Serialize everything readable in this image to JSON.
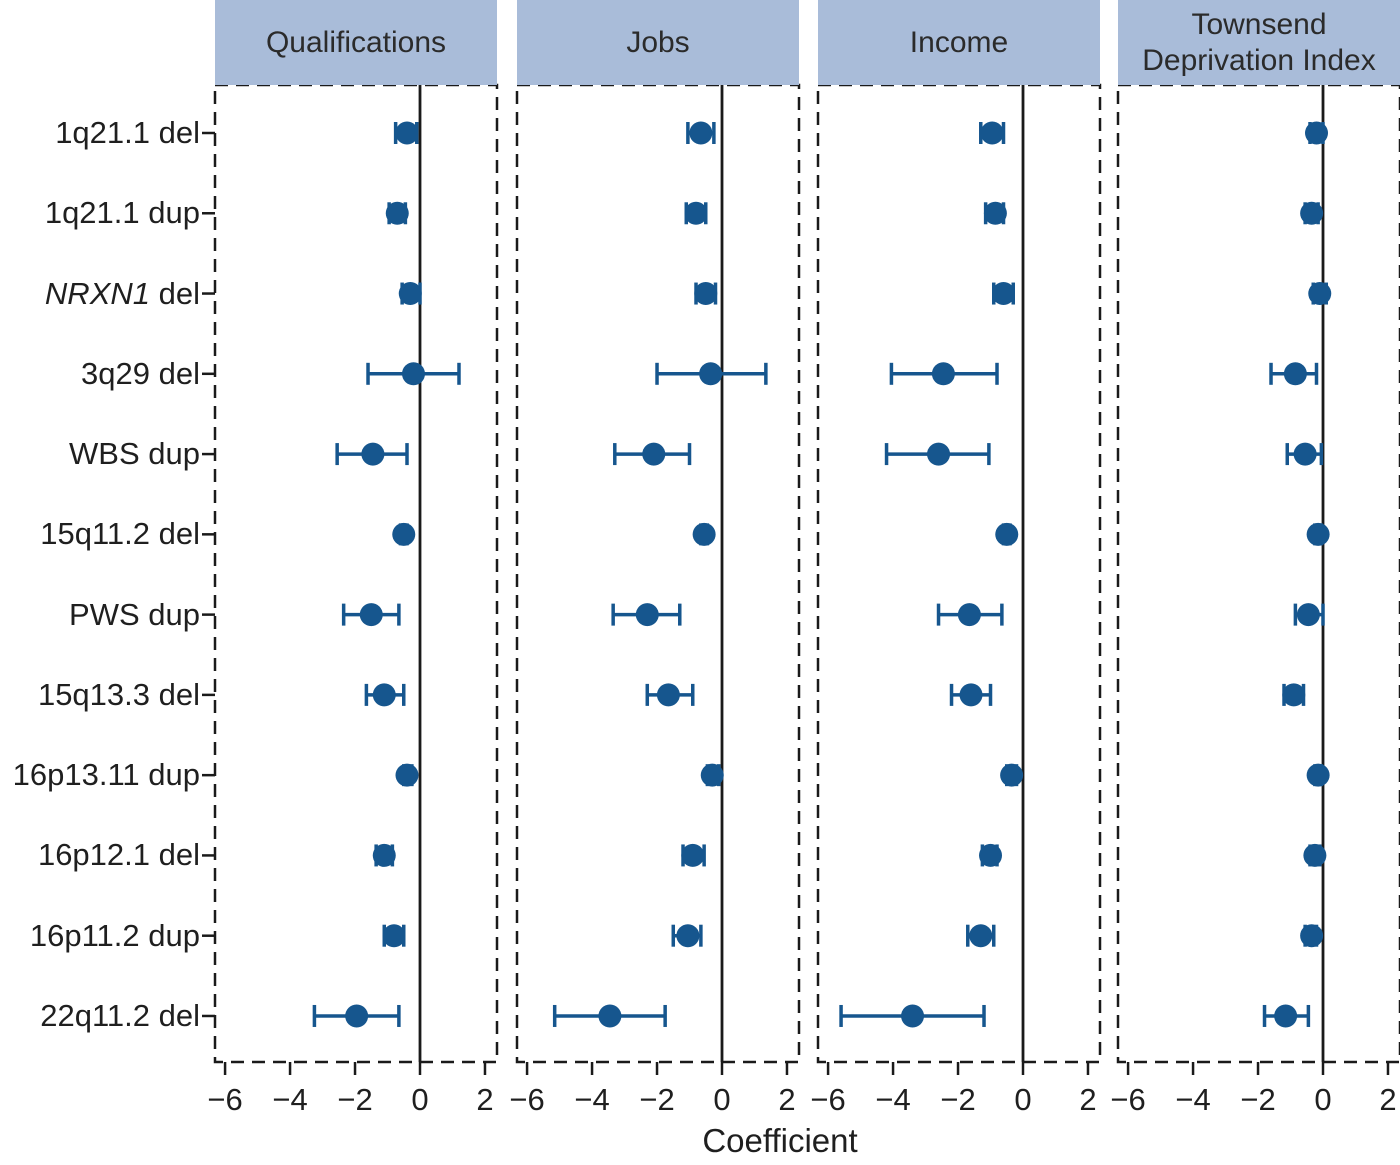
{
  "chart_data": {
    "type": "scatter",
    "subtype": "forest-plot-with-error-bars",
    "title": "",
    "xlabel": "Coefficient",
    "xticks": [
      -6,
      -4,
      -2,
      0,
      2
    ],
    "xtick_labels": [
      "−6",
      "−4",
      "−2",
      "0",
      "2"
    ],
    "xlim": [
      -6.31,
      2.37
    ],
    "reference_line_x": 0,
    "grid": false,
    "legend": "none",
    "rows": [
      {
        "gene": "1q21.1",
        "suffix": "del",
        "italic": false
      },
      {
        "gene": "1q21.1",
        "suffix": "dup",
        "italic": false
      },
      {
        "gene": "NRXN1",
        "suffix": "del",
        "italic": true
      },
      {
        "gene": "3q29",
        "suffix": "del",
        "italic": false
      },
      {
        "gene": "WBS",
        "suffix": "dup",
        "italic": false
      },
      {
        "gene": "15q11.2",
        "suffix": "del",
        "italic": false
      },
      {
        "gene": "PWS",
        "suffix": "dup",
        "italic": false
      },
      {
        "gene": "15q13.3",
        "suffix": "del",
        "italic": false
      },
      {
        "gene": "16p13.11",
        "suffix": "dup",
        "italic": false
      },
      {
        "gene": "16p12.1",
        "suffix": "del",
        "italic": false
      },
      {
        "gene": "16p11.2",
        "suffix": "dup",
        "italic": false
      },
      {
        "gene": "22q11.2",
        "suffix": "del",
        "italic": false
      }
    ],
    "point_format": "[coefficient, ci_low, ci_high] per row, top to bottom",
    "panels": [
      {
        "title": "Qualifications",
        "points": [
          [
            -0.4,
            -0.75,
            -0.1
          ],
          [
            -0.7,
            -0.95,
            -0.45
          ],
          [
            -0.3,
            -0.55,
            0.0
          ],
          [
            -0.2,
            -1.6,
            1.2
          ],
          [
            -1.45,
            -2.55,
            -0.4
          ],
          [
            -0.5,
            -0.6,
            -0.4
          ],
          [
            -1.5,
            -2.35,
            -0.65
          ],
          [
            -1.1,
            -1.65,
            -0.5
          ],
          [
            -0.4,
            -0.5,
            -0.25
          ],
          [
            -1.1,
            -1.35,
            -0.85
          ],
          [
            -0.8,
            -1.1,
            -0.5
          ],
          [
            -1.95,
            -3.25,
            -0.65
          ]
        ]
      },
      {
        "title": "Jobs",
        "points": [
          [
            -0.65,
            -1.05,
            -0.25
          ],
          [
            -0.8,
            -1.1,
            -0.5
          ],
          [
            -0.5,
            -0.8,
            -0.2
          ],
          [
            -0.35,
            -2.0,
            1.35
          ],
          [
            -2.1,
            -3.3,
            -1.0
          ],
          [
            -0.55,
            -0.65,
            -0.45
          ],
          [
            -2.3,
            -3.35,
            -1.3
          ],
          [
            -1.65,
            -2.3,
            -0.9
          ],
          [
            -0.3,
            -0.45,
            -0.1
          ],
          [
            -0.9,
            -1.2,
            -0.55
          ],
          [
            -1.05,
            -1.5,
            -0.65
          ],
          [
            -3.45,
            -5.15,
            -1.75
          ]
        ]
      },
      {
        "title": "Income",
        "points": [
          [
            -0.95,
            -1.3,
            -0.6
          ],
          [
            -0.85,
            -1.15,
            -0.6
          ],
          [
            -0.6,
            -0.9,
            -0.3
          ],
          [
            -2.45,
            -4.05,
            -0.8
          ],
          [
            -2.6,
            -4.2,
            -1.05
          ],
          [
            -0.5,
            -0.6,
            -0.4
          ],
          [
            -1.65,
            -2.6,
            -0.65
          ],
          [
            -1.6,
            -2.2,
            -1.0
          ],
          [
            -0.35,
            -0.5,
            -0.2
          ],
          [
            -1.0,
            -1.25,
            -0.8
          ],
          [
            -1.3,
            -1.7,
            -0.9
          ],
          [
            -3.4,
            -5.6,
            -1.2
          ]
        ]
      },
      {
        "title": "Townsend Deprivation Index",
        "points": [
          [
            -0.2,
            -0.4,
            0.0
          ],
          [
            -0.35,
            -0.55,
            -0.15
          ],
          [
            -0.1,
            -0.3,
            0.1
          ],
          [
            -0.85,
            -1.6,
            -0.2
          ],
          [
            -0.55,
            -1.1,
            -0.05
          ],
          [
            -0.15,
            -0.25,
            -0.05
          ],
          [
            -0.45,
            -0.85,
            0.0
          ],
          [
            -0.9,
            -1.2,
            -0.6
          ],
          [
            -0.15,
            -0.25,
            -0.05
          ],
          [
            -0.25,
            -0.4,
            -0.1
          ],
          [
            -0.35,
            -0.55,
            -0.2
          ],
          [
            -1.15,
            -1.8,
            -0.45
          ]
        ]
      }
    ],
    "colors": {
      "marker": "#16568e",
      "header_bg": "#a9bcd9",
      "axis": "#1a1a1a",
      "text": "#262626",
      "background": "#ffffff"
    }
  }
}
